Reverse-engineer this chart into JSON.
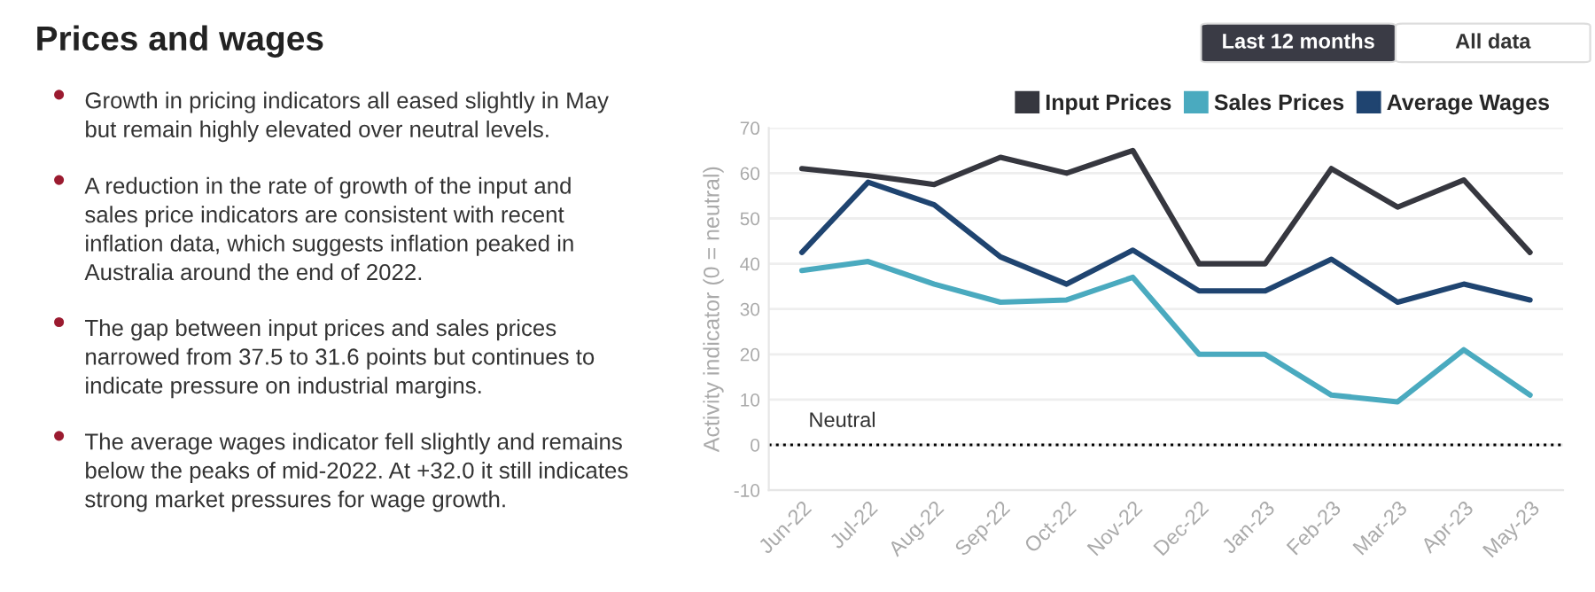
{
  "chart_data": [
    {
      "type": "other",
      "title": "Prices and wages",
      "annotations": [
        "Growth in pricing indicators all eased slightly in May but remain highly elevated over neutral levels.",
        "A reduction in the rate of growth of the input and sales price indicators are consistent with recent inflation data, which suggests inflation peaked in Australia around the end of 2022.",
        "The gap between input prices and sales prices narrowed from 37.5 to 31.6 points but continues to indicate pressure on industrial margins.",
        "The average wages indicator fell slightly and remains below the peaks of mid-2022. At +32.0 it still indicates strong market pressures for wage growth."
      ]
    },
    {
      "type": "line",
      "ylabel": "Activity indicator (0 = neutral)",
      "categories": [
        "Jun-22",
        "Jul-22",
        "Aug-22",
        "Sep-22",
        "Oct-22",
        "Nov-22",
        "Dec-22",
        "Jan-23",
        "Feb-23",
        "Mar-23",
        "Apr-23",
        "May-23"
      ],
      "series": [
        {
          "name": "Input Prices",
          "color": "#36373f",
          "values": [
            61,
            59.5,
            57.5,
            63.5,
            60,
            65,
            40,
            40,
            61,
            52.5,
            58.5,
            42.5
          ]
        },
        {
          "name": "Sales Prices",
          "color": "#4aaabf",
          "values": [
            38.5,
            40.5,
            35.5,
            31.5,
            32,
            37,
            20,
            20,
            11,
            9.5,
            21,
            11
          ]
        },
        {
          "name": "Average Wages",
          "color": "#1f4470",
          "values": [
            42.5,
            58,
            53,
            41.5,
            35.5,
            43,
            34,
            34,
            41,
            31.5,
            35.5,
            32
          ]
        }
      ],
      "ylim": [
        -10,
        70
      ],
      "yticks": [
        -10,
        0,
        10,
        20,
        30,
        40,
        50,
        60,
        70
      ],
      "ref_lines": [
        {
          "axis": "y",
          "value": 0,
          "label": "Neutral",
          "color": "#000000",
          "line_style": "dotted"
        }
      ],
      "annotations": [
        "Last 12 months",
        "All data"
      ],
      "grid": "y",
      "legend": "top right",
      "marker": "none",
      "line_style": "solid"
    }
  ]
}
